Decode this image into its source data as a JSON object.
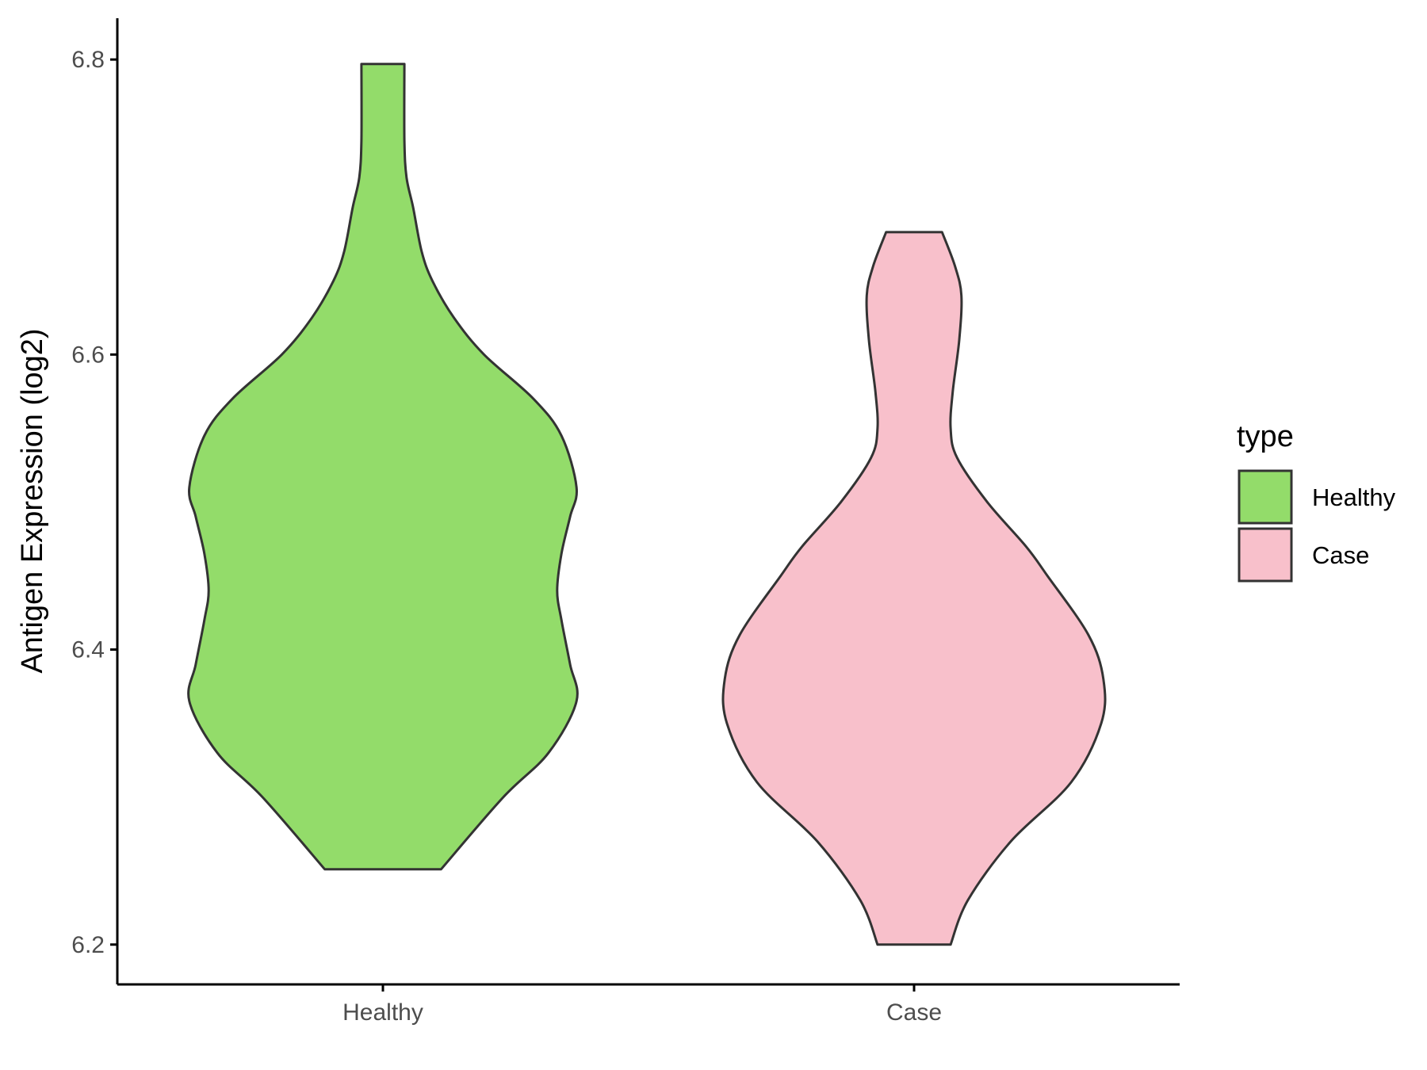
{
  "chart_data": {
    "type": "violin",
    "ylabel": "Antigen Expression (log2)",
    "xlabel": "",
    "ylim": [
      6.173,
      6.828
    ],
    "yticks": [
      6.2,
      6.4,
      6.6,
      6.8
    ],
    "ytick_labels": [
      "6.2",
      "6.4",
      "6.6",
      "6.8"
    ],
    "categories": [
      "Healthy",
      "Case"
    ],
    "legend": {
      "title": "type",
      "position": "right",
      "entries": [
        "Healthy",
        "Case"
      ]
    },
    "colors": {
      "Healthy": "#93dc6a",
      "Case": "#f8c0cb",
      "outline": "#333333"
    },
    "series": [
      {
        "category": "Healthy",
        "min": 6.251,
        "max": 6.797,
        "density_profile": [
          [
            6.251,
            0.27
          ],
          [
            6.3,
            0.56
          ],
          [
            6.33,
            0.77
          ],
          [
            6.365,
            0.9
          ],
          [
            6.39,
            0.87
          ],
          [
            6.42,
            0.83
          ],
          [
            6.44,
            0.81
          ],
          [
            6.465,
            0.83
          ],
          [
            6.49,
            0.87
          ],
          [
            6.51,
            0.9
          ],
          [
            6.545,
            0.83
          ],
          [
            6.57,
            0.7
          ],
          [
            6.6,
            0.47
          ],
          [
            6.625,
            0.33
          ],
          [
            6.65,
            0.23
          ],
          [
            6.67,
            0.18
          ],
          [
            6.7,
            0.14
          ],
          [
            6.72,
            0.11
          ],
          [
            6.745,
            0.1
          ],
          [
            6.797,
            0.1
          ]
        ]
      },
      {
        "category": "Case",
        "min": 6.2,
        "max": 6.683,
        "density_profile": [
          [
            6.2,
            0.17
          ],
          [
            6.23,
            0.25
          ],
          [
            6.27,
            0.45
          ],
          [
            6.31,
            0.73
          ],
          [
            6.35,
            0.87
          ],
          [
            6.38,
            0.88
          ],
          [
            6.41,
            0.81
          ],
          [
            6.45,
            0.62
          ],
          [
            6.47,
            0.52
          ],
          [
            6.5,
            0.34
          ],
          [
            6.53,
            0.2
          ],
          [
            6.55,
            0.17
          ],
          [
            6.575,
            0.18
          ],
          [
            6.61,
            0.21
          ],
          [
            6.64,
            0.22
          ],
          [
            6.66,
            0.19
          ],
          [
            6.683,
            0.13
          ]
        ]
      }
    ]
  }
}
